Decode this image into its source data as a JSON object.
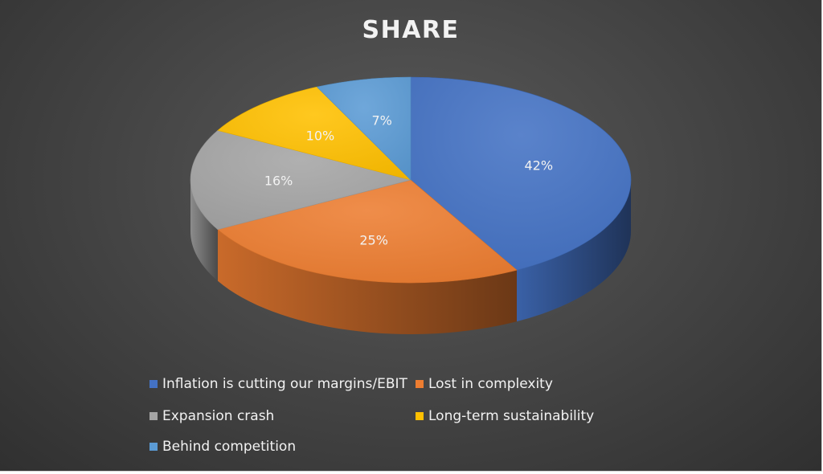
{
  "chart_data": {
    "type": "pie",
    "title": "SHARE",
    "categories": [
      "Inflation is cutting our margins/EBIT",
      "Lost in complexity",
      "Expansion crash",
      "Long-term sustainability",
      "Behind competition"
    ],
    "values": [
      42,
      25,
      16,
      10,
      7
    ],
    "data_labels": [
      "42%",
      "25%",
      "16%",
      "10%",
      "7%"
    ],
    "colors": [
      "#4472C4",
      "#ED7D31",
      "#A5A5A5",
      "#FFC000",
      "#5B9BD5"
    ],
    "legend_position": "bottom",
    "style": "3d"
  }
}
